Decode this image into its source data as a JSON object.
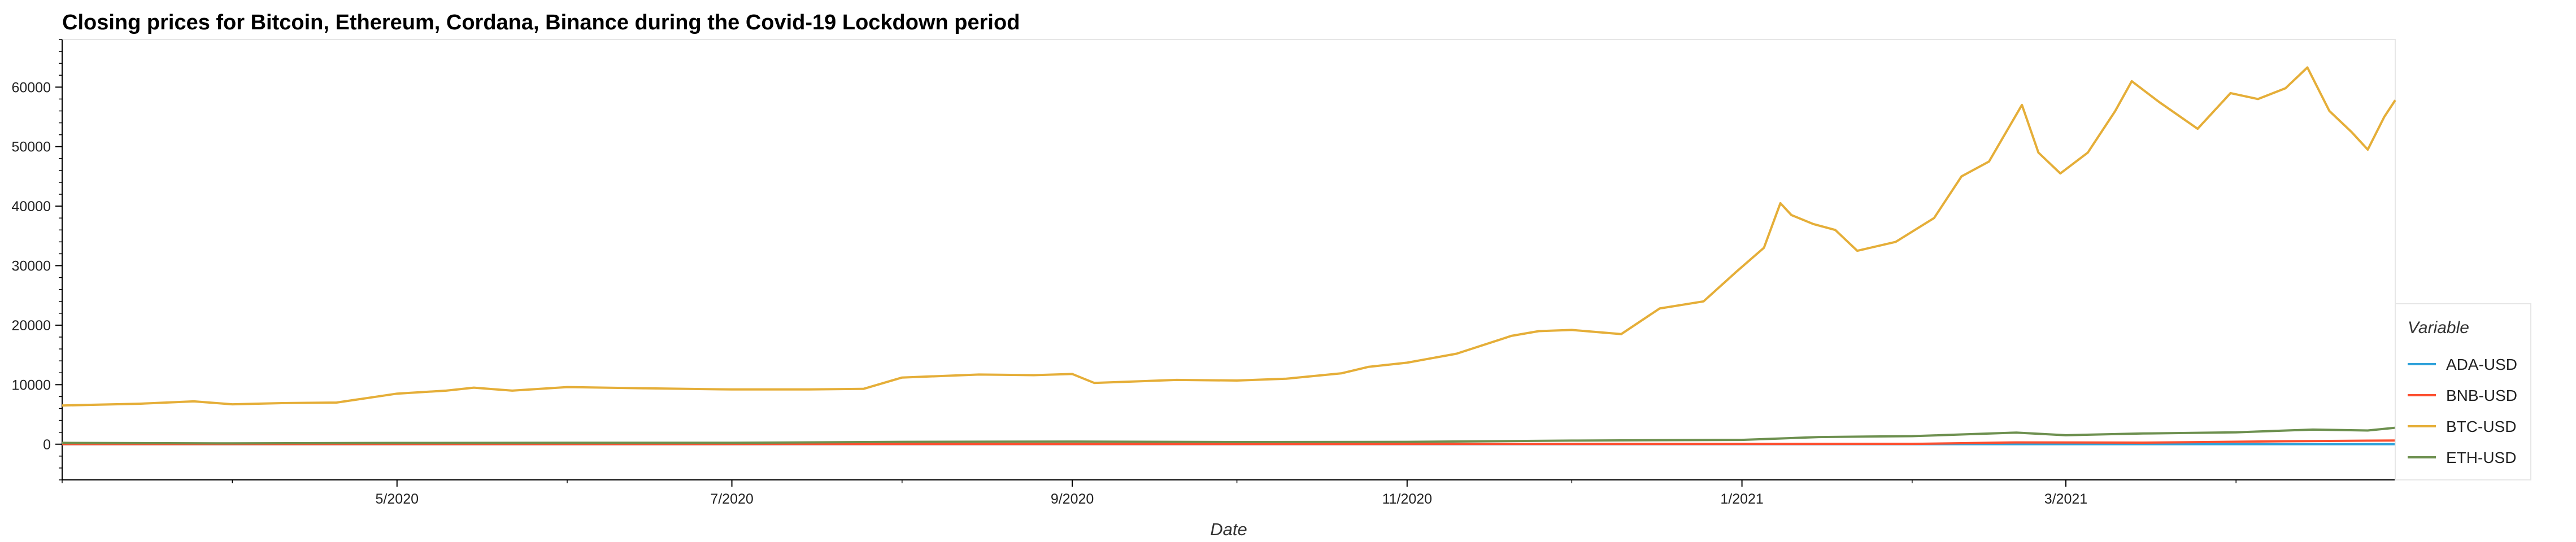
{
  "chart_data": {
    "type": "line",
    "title": "Closing prices for Bitcoin, Ethereum, Cordana, Binance during the Covid-19 Lockdown period",
    "xlabel": "Date",
    "ylabel": "",
    "x_range": [
      "2020-03-01",
      "2021-04-30"
    ],
    "ylim": [
      -6000,
      68000
    ],
    "y_ticks": [
      0,
      10000,
      20000,
      30000,
      40000,
      50000,
      60000
    ],
    "x_ticks": [
      {
        "date": "2020-05-01",
        "label": "5/2020"
      },
      {
        "date": "2020-07-01",
        "label": "7/2020"
      },
      {
        "date": "2020-09-01",
        "label": "9/2020"
      },
      {
        "date": "2020-11-01",
        "label": "11/2020"
      },
      {
        "date": "2021-01-01",
        "label": "1/2021"
      },
      {
        "date": "2021-03-01",
        "label": "3/2021"
      }
    ],
    "legend_title": "Variable",
    "legend_position": "right",
    "grid": false,
    "series": [
      {
        "name": "ADA-USD",
        "color": "#30a2da",
        "points": [
          [
            "2020-03-01",
            0.05
          ],
          [
            "2020-06-01",
            0.08
          ],
          [
            "2020-09-01",
            0.1
          ],
          [
            "2020-12-01",
            0.15
          ],
          [
            "2021-01-01",
            0.18
          ],
          [
            "2021-02-01",
            0.5
          ],
          [
            "2021-03-01",
            1.2
          ],
          [
            "2021-04-15",
            1.4
          ],
          [
            "2021-04-30",
            1.3
          ]
        ]
      },
      {
        "name": "BNB-USD",
        "color": "#fc4f30",
        "points": [
          [
            "2020-03-01",
            16
          ],
          [
            "2020-06-01",
            17
          ],
          [
            "2020-09-01",
            23
          ],
          [
            "2020-12-01",
            30
          ],
          [
            "2021-01-01",
            38
          ],
          [
            "2021-02-01",
            50
          ],
          [
            "2021-02-20",
            300
          ],
          [
            "2021-03-15",
            260
          ],
          [
            "2021-04-10",
            500
          ],
          [
            "2021-04-20",
            560
          ],
          [
            "2021-04-30",
            620
          ]
        ]
      },
      {
        "name": "BTC-USD",
        "color": "#e5ae38",
        "points": [
          [
            "2020-03-01",
            6500
          ],
          [
            "2020-03-15",
            6800
          ],
          [
            "2020-03-25",
            7200
          ],
          [
            "2020-04-01",
            6700
          ],
          [
            "2020-04-10",
            6900
          ],
          [
            "2020-04-20",
            7000
          ],
          [
            "2020-05-01",
            8500
          ],
          [
            "2020-05-10",
            9000
          ],
          [
            "2020-05-15",
            9500
          ],
          [
            "2020-05-22",
            9000
          ],
          [
            "2020-06-01",
            9600
          ],
          [
            "2020-06-15",
            9400
          ],
          [
            "2020-07-01",
            9200
          ],
          [
            "2020-07-15",
            9200
          ],
          [
            "2020-07-25",
            9300
          ],
          [
            "2020-08-01",
            11200
          ],
          [
            "2020-08-15",
            11700
          ],
          [
            "2020-08-25",
            11600
          ],
          [
            "2020-09-01",
            11800
          ],
          [
            "2020-09-05",
            10300
          ],
          [
            "2020-09-20",
            10800
          ],
          [
            "2020-10-01",
            10700
          ],
          [
            "2020-10-10",
            11000
          ],
          [
            "2020-10-20",
            11900
          ],
          [
            "2020-10-25",
            13000
          ],
          [
            "2020-11-01",
            13700
          ],
          [
            "2020-11-10",
            15200
          ],
          [
            "2020-11-20",
            18200
          ],
          [
            "2020-11-25",
            19000
          ],
          [
            "2020-12-01",
            19200
          ],
          [
            "2020-12-10",
            18500
          ],
          [
            "2020-12-17",
            22800
          ],
          [
            "2020-12-25",
            24000
          ],
          [
            "2020-12-31",
            29000
          ],
          [
            "2021-01-05",
            33000
          ],
          [
            "2021-01-08",
            40500
          ],
          [
            "2021-01-10",
            38500
          ],
          [
            "2021-01-14",
            37000
          ],
          [
            "2021-01-18",
            36000
          ],
          [
            "2021-01-22",
            32500
          ],
          [
            "2021-01-29",
            34000
          ],
          [
            "2021-02-05",
            38000
          ],
          [
            "2021-02-10",
            45000
          ],
          [
            "2021-02-15",
            47500
          ],
          [
            "2021-02-21",
            57000
          ],
          [
            "2021-02-24",
            49000
          ],
          [
            "2021-02-28",
            45500
          ],
          [
            "2021-03-05",
            49000
          ],
          [
            "2021-03-10",
            56000
          ],
          [
            "2021-03-13",
            61000
          ],
          [
            "2021-03-18",
            57500
          ],
          [
            "2021-03-25",
            53000
          ],
          [
            "2021-03-31",
            59000
          ],
          [
            "2021-04-05",
            58000
          ],
          [
            "2021-04-10",
            59800
          ],
          [
            "2021-04-14",
            63300
          ],
          [
            "2021-04-18",
            56000
          ],
          [
            "2021-04-22",
            52500
          ],
          [
            "2021-04-25",
            49500
          ],
          [
            "2021-04-28",
            55000
          ],
          [
            "2021-04-30",
            57800
          ]
        ]
      },
      {
        "name": "ETH-USD",
        "color": "#6d904f",
        "points": [
          [
            "2020-03-01",
            220
          ],
          [
            "2020-04-01",
            140
          ],
          [
            "2020-05-01",
            210
          ],
          [
            "2020-06-01",
            240
          ],
          [
            "2020-07-01",
            230
          ],
          [
            "2020-08-01",
            390
          ],
          [
            "2020-09-01",
            440
          ],
          [
            "2020-10-01",
            360
          ],
          [
            "2020-11-01",
            390
          ],
          [
            "2020-12-01",
            600
          ],
          [
            "2021-01-01",
            730
          ],
          [
            "2021-01-15",
            1200
          ],
          [
            "2021-02-01",
            1350
          ],
          [
            "2021-02-20",
            1950
          ],
          [
            "2021-03-01",
            1500
          ],
          [
            "2021-03-15",
            1800
          ],
          [
            "2021-04-01",
            2000
          ],
          [
            "2021-04-15",
            2450
          ],
          [
            "2021-04-25",
            2300
          ],
          [
            "2021-04-30",
            2770
          ]
        ]
      }
    ]
  }
}
